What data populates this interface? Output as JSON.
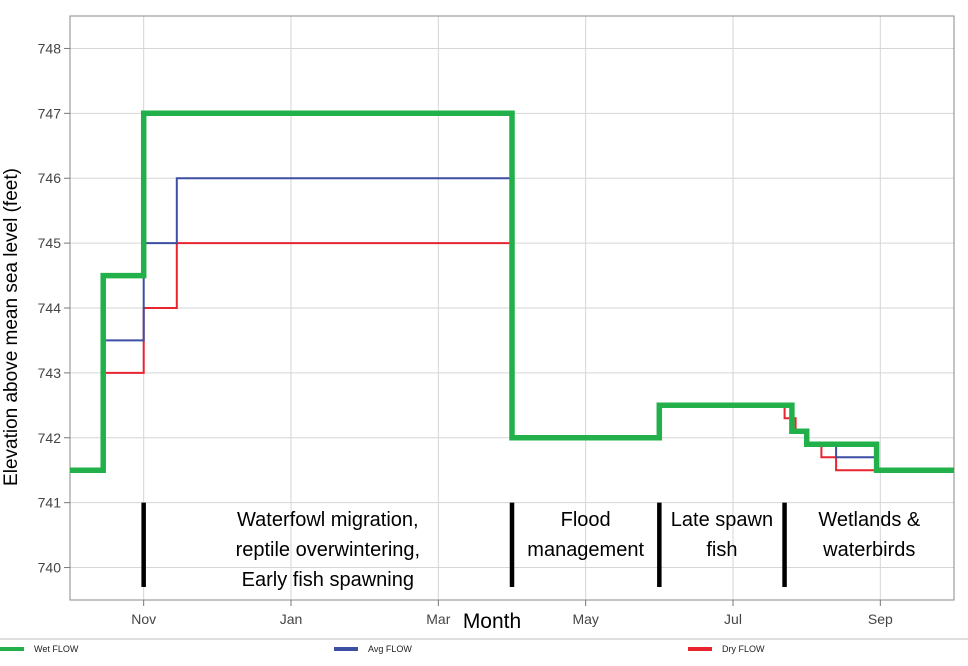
{
  "chart_data": {
    "type": "line",
    "step": true,
    "title": "",
    "xlabel": "Month",
    "ylabel": "Elevation above mean sea level (feet)",
    "xlim": [
      0,
      12
    ],
    "ylim": [
      739.5,
      748.5
    ],
    "grid": true,
    "x_ticks": [
      {
        "value": 1,
        "label": "Nov"
      },
      {
        "value": 3,
        "label": "Jan"
      },
      {
        "value": 5,
        "label": "Mar"
      },
      {
        "value": 7,
        "label": "May"
      },
      {
        "value": 9,
        "label": "Jul"
      },
      {
        "value": 11,
        "label": "Sep"
      }
    ],
    "y_ticks": [
      740,
      741,
      742,
      743,
      744,
      745,
      746,
      747,
      748
    ],
    "series": [
      {
        "name": "Dry FLOW",
        "color": "#e8242e",
        "points": [
          [
            0,
            741.5
          ],
          [
            0.45,
            741.5
          ],
          [
            0.45,
            743
          ],
          [
            1,
            743
          ],
          [
            1,
            744
          ],
          [
            1.45,
            744
          ],
          [
            1.45,
            745
          ],
          [
            6,
            745
          ],
          [
            6,
            742
          ],
          [
            8,
            742
          ],
          [
            8,
            742.5
          ],
          [
            9.7,
            742.5
          ],
          [
            9.7,
            742.3
          ],
          [
            9.85,
            742.3
          ],
          [
            9.85,
            742.1
          ],
          [
            10,
            742.1
          ],
          [
            10,
            741.9
          ],
          [
            10.2,
            741.9
          ],
          [
            10.2,
            741.7
          ],
          [
            10.4,
            741.7
          ],
          [
            10.4,
            741.5
          ],
          [
            12,
            741.5
          ]
        ]
      },
      {
        "name": "Avg FLOW",
        "color": "#3d4fa3",
        "points": [
          [
            0,
            741.5
          ],
          [
            0.45,
            741.5
          ],
          [
            0.45,
            743.5
          ],
          [
            1,
            743.5
          ],
          [
            1,
            745
          ],
          [
            1.45,
            745
          ],
          [
            1.45,
            746
          ],
          [
            6,
            746
          ],
          [
            6,
            742
          ],
          [
            8,
            742
          ],
          [
            8,
            742.5
          ],
          [
            9.8,
            742.5
          ],
          [
            9.8,
            742.1
          ],
          [
            10,
            742.1
          ],
          [
            10,
            741.9
          ],
          [
            10.4,
            741.9
          ],
          [
            10.4,
            741.7
          ],
          [
            10.95,
            741.7
          ],
          [
            10.95,
            741.5
          ],
          [
            12,
            741.5
          ]
        ]
      },
      {
        "name": "Wet FLOW",
        "color": "#22b04a",
        "points": [
          [
            0,
            741.5
          ],
          [
            0.45,
            741.5
          ],
          [
            0.45,
            744.5
          ],
          [
            1,
            744.5
          ],
          [
            1,
            747
          ],
          [
            6,
            747
          ],
          [
            6,
            742
          ],
          [
            8,
            742
          ],
          [
            8,
            742.5
          ],
          [
            9.8,
            742.5
          ],
          [
            9.8,
            742.1
          ],
          [
            10,
            742.1
          ],
          [
            10,
            741.9
          ],
          [
            10.95,
            741.9
          ],
          [
            10.95,
            741.5
          ],
          [
            12,
            741.5
          ]
        ]
      }
    ],
    "dividers": [
      1,
      6,
      8,
      9.7
    ],
    "annotations": [
      {
        "x": 3.5,
        "lines": [
          "Waterfowl migration,",
          "reptile overwintering,",
          "Early fish spawning"
        ]
      },
      {
        "x": 7.0,
        "lines": [
          "Flood",
          "management"
        ]
      },
      {
        "x": 8.85,
        "lines": [
          "Late spawn",
          "fish"
        ]
      },
      {
        "x": 10.85,
        "lines": [
          "Wetlands &",
          "waterbirds"
        ]
      }
    ],
    "legend": [
      {
        "name": "Wet FLOW",
        "color": "#22b04a"
      },
      {
        "name": "Avg FLOW",
        "color": "#3d4fa3"
      },
      {
        "name": "Dry FLOW",
        "color": "#e8242e"
      }
    ],
    "legend_position": "bottom"
  }
}
